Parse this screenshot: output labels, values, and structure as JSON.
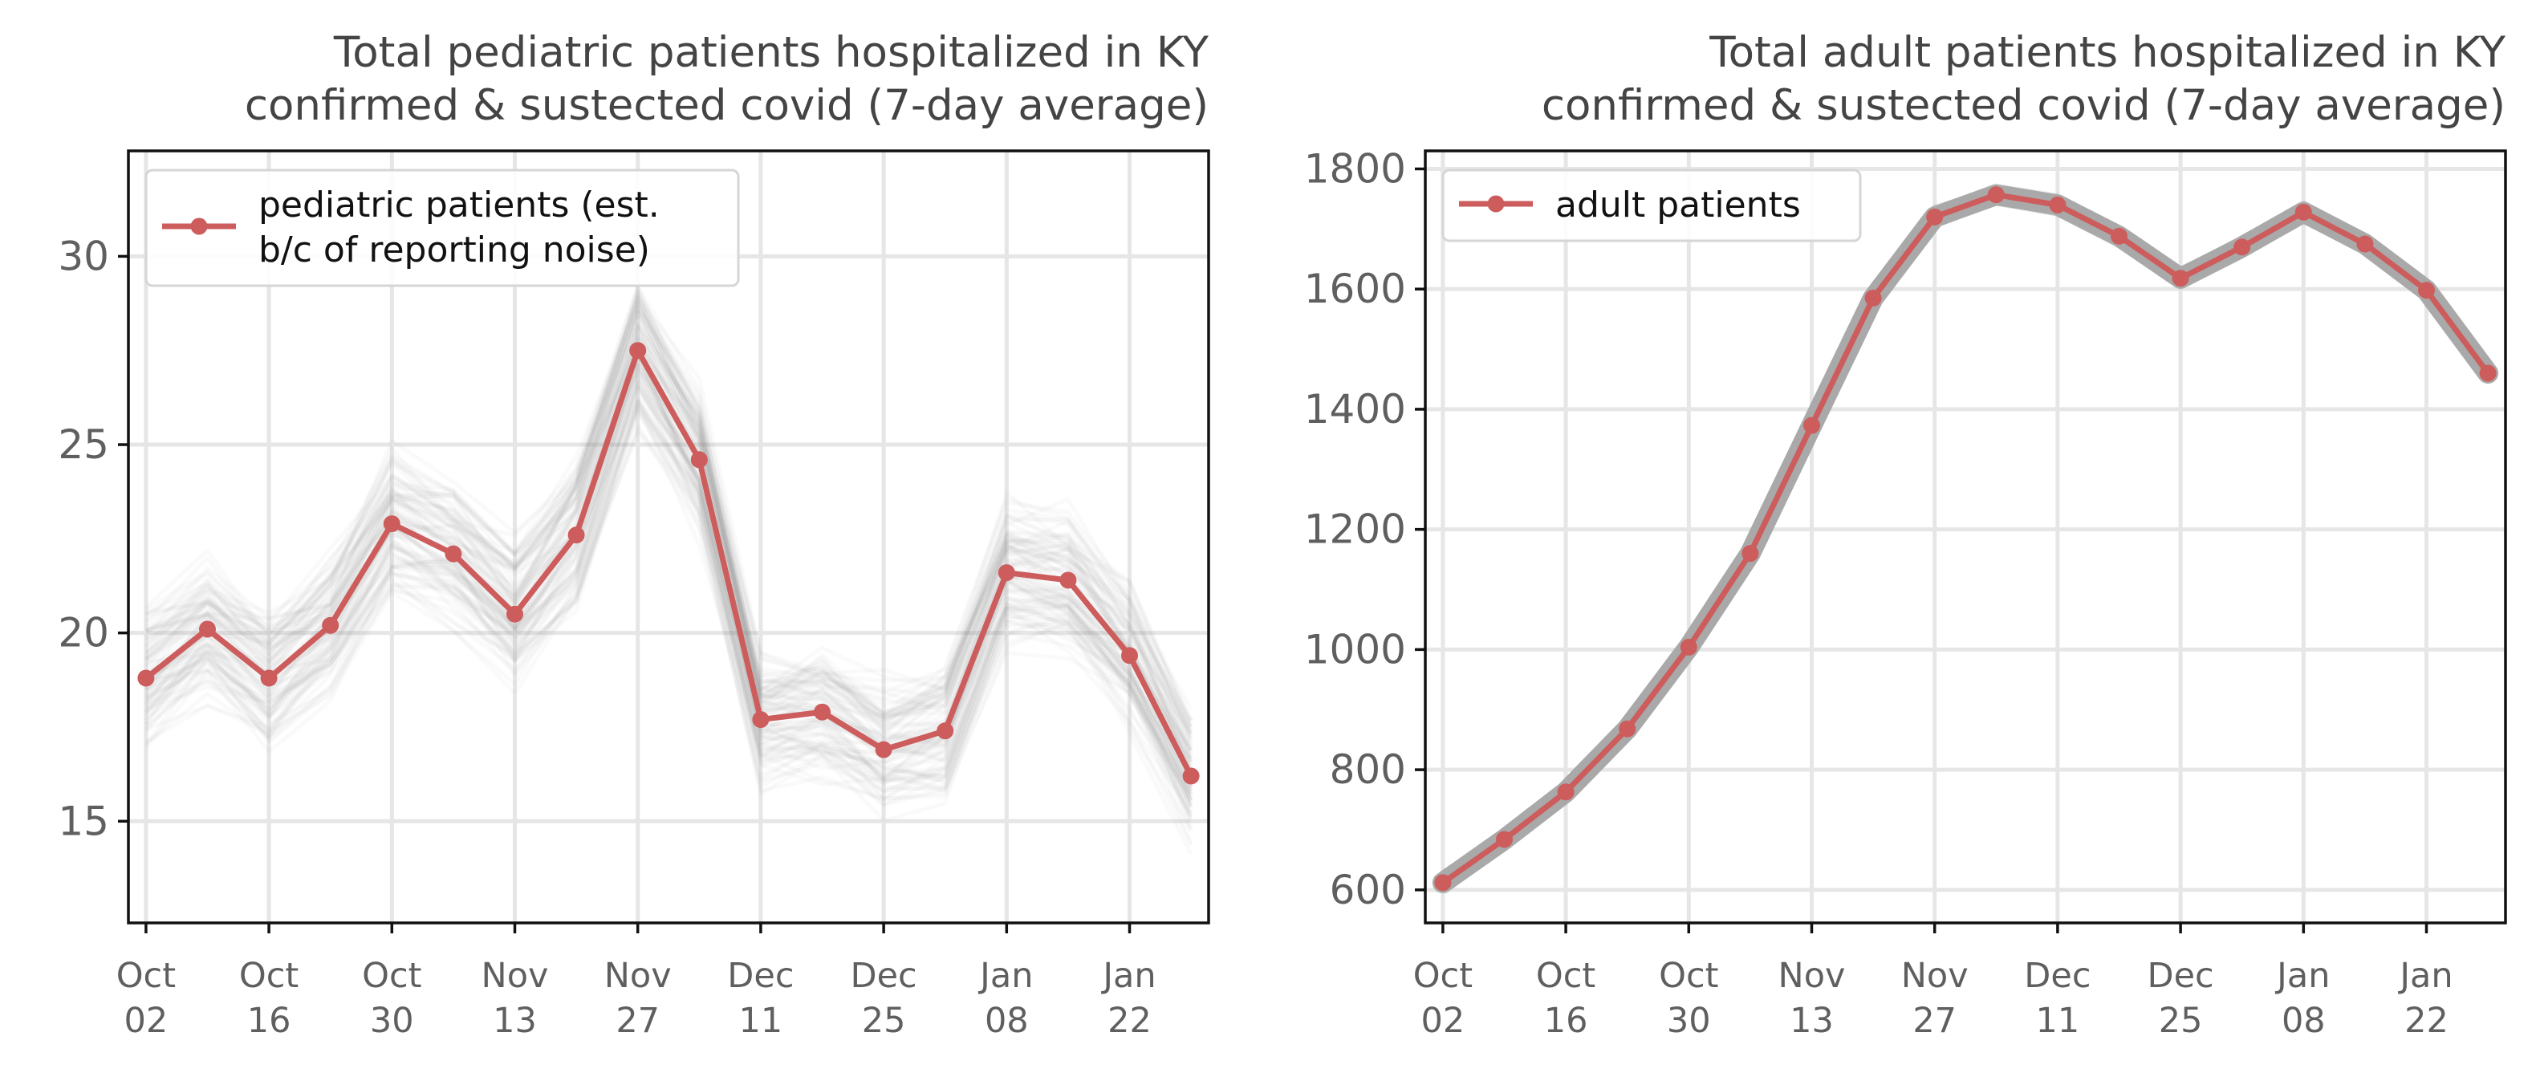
{
  "colors": {
    "main_line": "#cd5c5c",
    "uncertainty": "#808080",
    "grid": "#e6e6e6",
    "text": "#444444"
  },
  "chart_data": [
    {
      "type": "line",
      "title": "Total pediatric patients hospitalized in KY\nconfirmed & sustected covid (7-day average)",
      "title_lines": [
        "Total pediatric patients hospitalized in KY",
        "confirmed & sustected covid (7-day average)"
      ],
      "xlabel": "",
      "ylabel": "",
      "grid": true,
      "legend_position": "top-left",
      "x_tick_labels": [
        [
          "Oct",
          "02"
        ],
        [
          "Oct",
          "16"
        ],
        [
          "Oct",
          "30"
        ],
        [
          "Nov",
          "13"
        ],
        [
          "Nov",
          "27"
        ],
        [
          "Dec",
          "11"
        ],
        [
          "Dec",
          "25"
        ],
        [
          "Jan",
          "08"
        ],
        [
          "Jan",
          "22"
        ]
      ],
      "y_ticks": [
        15,
        20,
        25,
        30
      ],
      "ylim": [
        12.3,
        32.8
      ],
      "x": [
        "2022-10-02",
        "2022-10-09",
        "2022-10-16",
        "2022-10-23",
        "2022-10-30",
        "2022-11-06",
        "2022-11-13",
        "2022-11-20",
        "2022-11-27",
        "2022-12-04",
        "2022-12-11",
        "2022-12-18",
        "2022-12-25",
        "2023-01-01",
        "2023-01-08",
        "2023-01-15",
        "2023-01-22",
        "2023-01-29"
      ],
      "xlim": [
        "2022-09-30",
        "2023-01-31"
      ],
      "series": [
        {
          "name": "pediatric patients (est.\nb/c of reporting noise)",
          "legend_lines": [
            "pediatric patients (est.",
            "b/c of reporting noise)"
          ],
          "values": [
            18.8,
            20.1,
            18.8,
            20.2,
            22.9,
            22.1,
            20.5,
            22.6,
            27.5,
            24.6,
            17.7,
            17.9,
            16.9,
            17.4,
            21.6,
            21.4,
            19.4,
            16.2
          ]
        }
      ],
      "uncertainty_band_spread": 1.6
    },
    {
      "type": "line",
      "title": "Total adult patients hospitalized in KY\nconfirmed & sustected covid (7-day average)",
      "title_lines": [
        "Total adult patients hospitalized in KY",
        "confirmed & sustected covid (7-day average)"
      ],
      "xlabel": "",
      "ylabel": "",
      "grid": true,
      "legend_position": "top-left",
      "x_tick_labels": [
        [
          "Oct",
          "02"
        ],
        [
          "Oct",
          "16"
        ],
        [
          "Oct",
          "30"
        ],
        [
          "Nov",
          "13"
        ],
        [
          "Nov",
          "27"
        ],
        [
          "Dec",
          "11"
        ],
        [
          "Dec",
          "25"
        ],
        [
          "Jan",
          "08"
        ],
        [
          "Jan",
          "22"
        ]
      ],
      "y_ticks": [
        600,
        800,
        1000,
        1200,
        1400,
        1600,
        1800
      ],
      "ylim": [
        545,
        1830
      ],
      "x": [
        "2022-10-02",
        "2022-10-09",
        "2022-10-16",
        "2022-10-23",
        "2022-10-30",
        "2022-11-06",
        "2022-11-13",
        "2022-11-20",
        "2022-11-27",
        "2022-12-04",
        "2022-12-11",
        "2022-12-18",
        "2022-12-25",
        "2023-01-01",
        "2023-01-08",
        "2023-01-15",
        "2023-01-22",
        "2023-01-29"
      ],
      "xlim": [
        "2022-09-30",
        "2023-01-31"
      ],
      "series": [
        {
          "name": "adult patients",
          "legend_lines": [
            "adult patients"
          ],
          "values": [
            612,
            684,
            763,
            868,
            1004,
            1160,
            1373,
            1585,
            1720,
            1757,
            1740,
            1688,
            1618,
            1670,
            1728,
            1675,
            1598,
            1460
          ]
        }
      ],
      "uncertainty_band_spread": 22
    }
  ]
}
